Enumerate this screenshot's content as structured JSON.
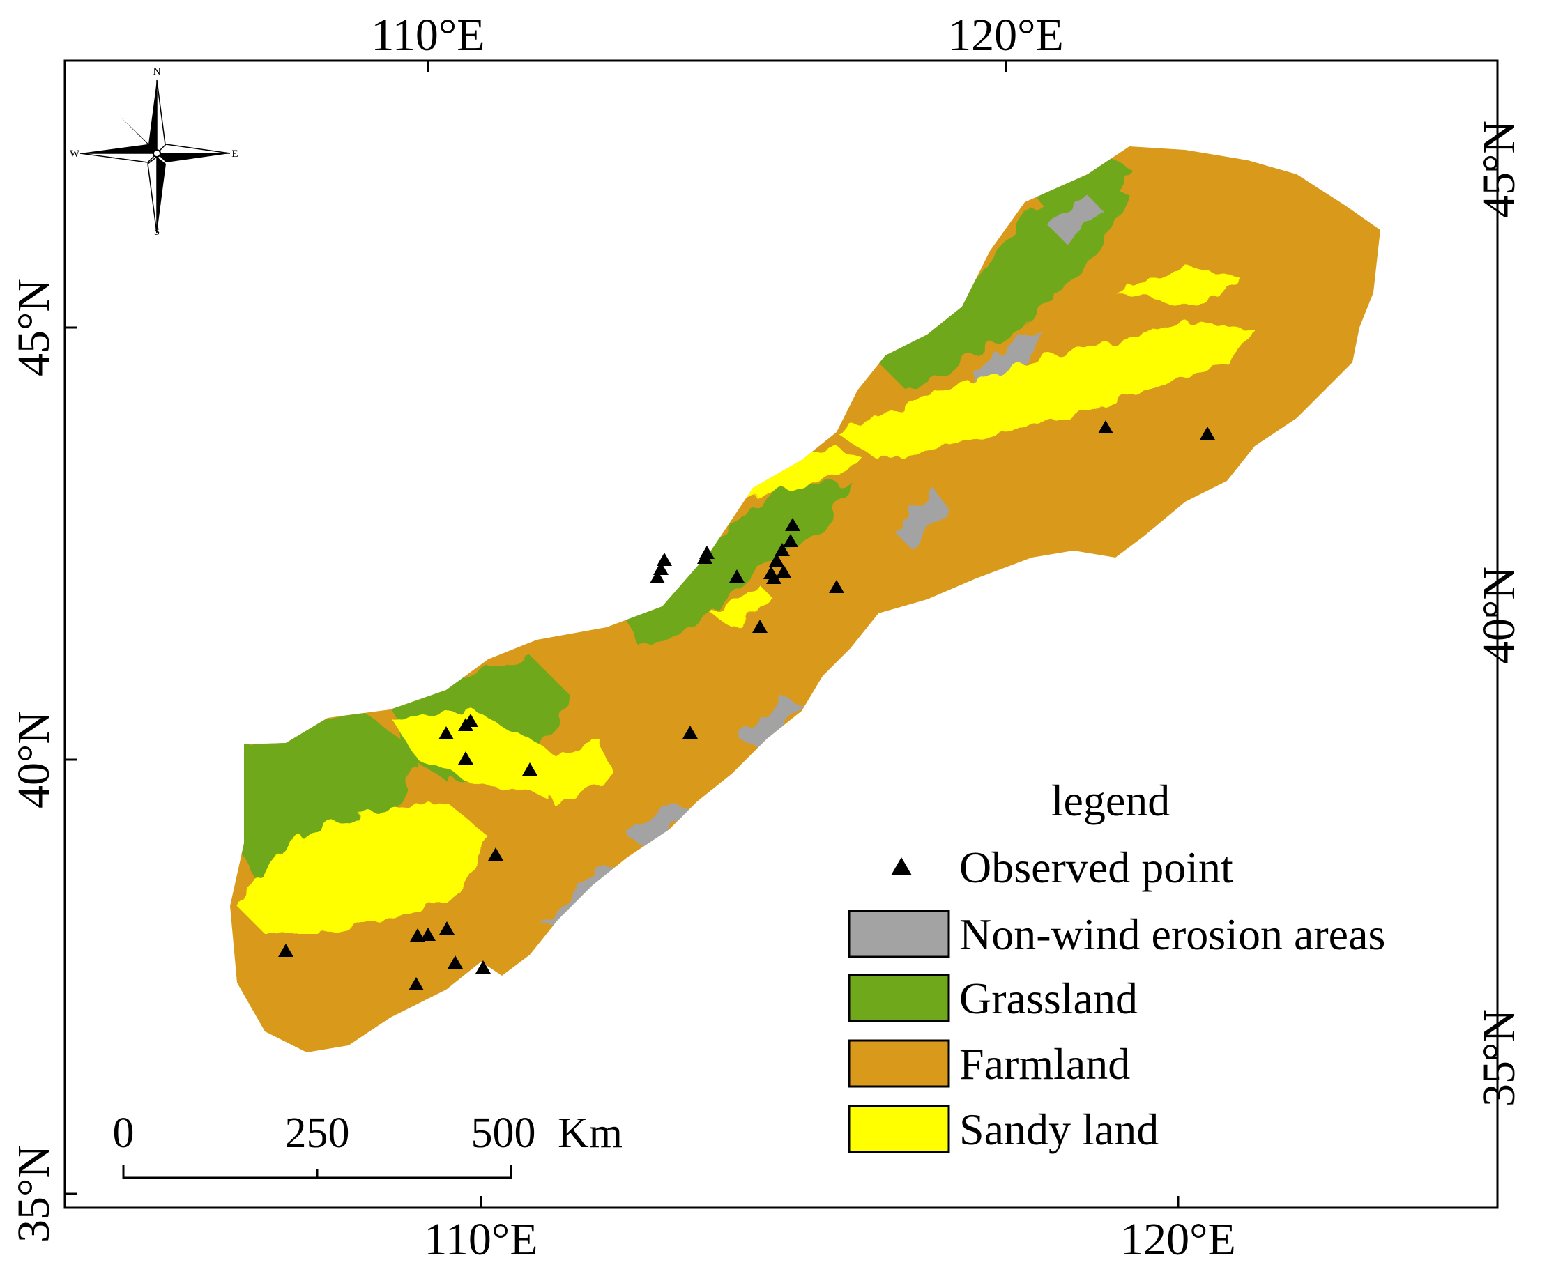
{
  "map": {
    "axes": {
      "top_ticks": [
        "110°E",
        "120°E"
      ],
      "bottom_ticks": [
        "110°E",
        "120°E"
      ],
      "left_ticks": [
        "45°N",
        "40°N",
        "35°N"
      ],
      "right_ticks": [
        "45°N",
        "40°N",
        "35°N"
      ]
    },
    "compass": {
      "n": "N",
      "s": "S",
      "e": "E",
      "w": "W"
    },
    "scale_bar": {
      "labels": [
        "0",
        "250",
        "500"
      ],
      "unit": "Km"
    },
    "legend": {
      "title": "legend",
      "items": [
        {
          "label": "Observed point",
          "symbol": "triangle",
          "color": "#000000"
        },
        {
          "label": "Non-wind erosion areas",
          "symbol": "box",
          "color": "#a3a3a3"
        },
        {
          "label": "Grassland",
          "symbol": "box",
          "color": "#6fa81a"
        },
        {
          "label": "Farmland",
          "symbol": "box",
          "color": "#d99a1c"
        },
        {
          "label": "Sandy land",
          "symbol": "box",
          "color": "#ffff00"
        }
      ]
    },
    "colors": {
      "non_wind": "#a3a3a3",
      "grassland": "#6fa81a",
      "farmland": "#d99a1c",
      "sandy": "#ffff00",
      "observed": "#000000"
    }
  }
}
